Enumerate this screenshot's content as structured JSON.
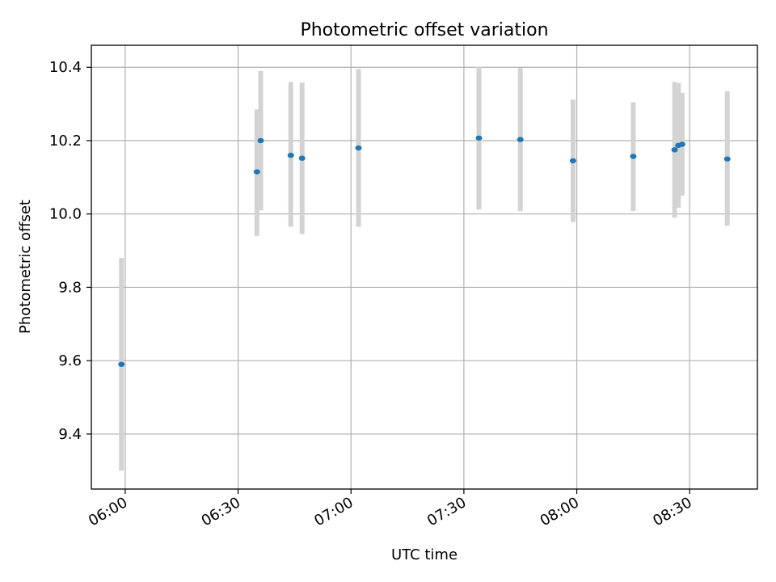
{
  "chart_data": {
    "type": "scatter",
    "title": "Photometric offset variation",
    "xlabel": "UTC time",
    "ylabel": "Photometric offset",
    "x_ticks": [
      "06:00",
      "06:30",
      "07:00",
      "07:30",
      "08:00",
      "08:30"
    ],
    "y_ticks": [
      "9.4",
      "9.6",
      "9.8",
      "10.0",
      "10.2",
      "10.4"
    ],
    "xlim": [
      "05:51",
      "08:48"
    ],
    "ylim": [
      9.25,
      10.46
    ],
    "grid": true,
    "colors": {
      "points": "#1f77b4",
      "errorbars": "#d3d3d3",
      "grid": "#b0b0b0"
    },
    "points": [
      {
        "x": "05:59",
        "y": 9.59,
        "err_low": 9.3,
        "err_high": 9.88
      },
      {
        "x": "06:35",
        "y": 10.115,
        "err_low": 9.94,
        "err_high": 10.285
      },
      {
        "x": "06:36",
        "y": 10.2,
        "err_low": 10.01,
        "err_high": 10.39
      },
      {
        "x": "06:44",
        "y": 10.16,
        "err_low": 9.965,
        "err_high": 10.36
      },
      {
        "x": "06:47",
        "y": 10.152,
        "err_low": 9.945,
        "err_high": 10.358
      },
      {
        "x": "07:02",
        "y": 10.18,
        "err_low": 9.965,
        "err_high": 10.395
      },
      {
        "x": "07:34",
        "y": 10.207,
        "err_low": 10.012,
        "err_high": 10.402
      },
      {
        "x": "07:45",
        "y": 10.203,
        "err_low": 10.008,
        "err_high": 10.398
      },
      {
        "x": "07:59",
        "y": 10.145,
        "err_low": 9.978,
        "err_high": 10.312
      },
      {
        "x": "08:15",
        "y": 10.157,
        "err_low": 10.008,
        "err_high": 10.305
      },
      {
        "x": "08:26",
        "y": 10.175,
        "err_low": 9.99,
        "err_high": 10.36
      },
      {
        "x": "08:27",
        "y": 10.187,
        "err_low": 10.017,
        "err_high": 10.357
      },
      {
        "x": "08:28",
        "y": 10.19,
        "err_low": 10.05,
        "err_high": 10.33
      },
      {
        "x": "08:40",
        "y": 10.15,
        "err_low": 9.968,
        "err_high": 10.335
      }
    ]
  }
}
